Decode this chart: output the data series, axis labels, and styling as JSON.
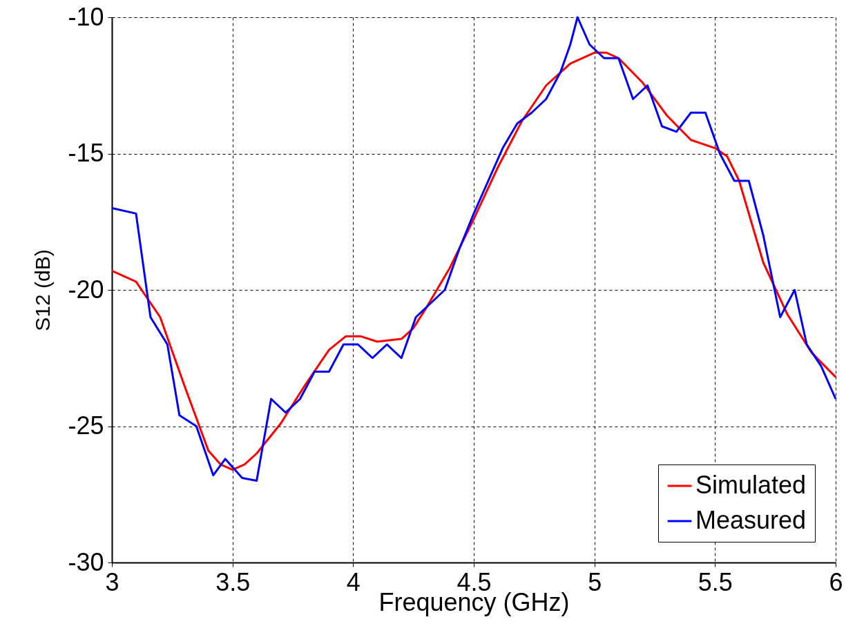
{
  "chart_data": {
    "type": "line",
    "xlabel": "Frequency (GHz)",
    "ylabel": "S12 (dB)",
    "xlim": [
      3,
      6
    ],
    "xticks": [
      3,
      3.5,
      4,
      4.5,
      5,
      5.5,
      6
    ],
    "ylim": [
      -30,
      -10
    ],
    "yticks": [
      -30,
      -25,
      -20,
      -15,
      -10
    ],
    "grid": true,
    "legend": "bottom right",
    "line_style": "solid",
    "marker": "none",
    "series": [
      {
        "name": "Simulated",
        "color": "#ff0000",
        "x": [
          3,
          3.1,
          3.2,
          3.3,
          3.4,
          3.45,
          3.5,
          3.55,
          3.6,
          3.7,
          3.8,
          3.9,
          3.97,
          4.03,
          4.1,
          4.2,
          4.25,
          4.3,
          4.4,
          4.5,
          4.6,
          4.7,
          4.8,
          4.9,
          5.0,
          5.05,
          5.1,
          5.2,
          5.3,
          5.4,
          5.5,
          5.55,
          5.6,
          5.65,
          5.7,
          5.8,
          5.9,
          6.0
        ],
        "values": [
          -19.3,
          -19.7,
          -21.0,
          -23.5,
          -25.9,
          -26.4,
          -26.6,
          -26.4,
          -26.0,
          -24.9,
          -23.5,
          -22.2,
          -21.7,
          -21.7,
          -21.9,
          -21.8,
          -21.4,
          -20.7,
          -19.2,
          -17.4,
          -15.5,
          -13.8,
          -12.5,
          -11.7,
          -11.3,
          -11.3,
          -11.5,
          -12.4,
          -13.6,
          -14.5,
          -14.8,
          -15.1,
          -16.0,
          -17.5,
          -19.0,
          -20.9,
          -22.3,
          -23.2
        ]
      },
      {
        "name": "Measured",
        "color": "#0000ff",
        "x": [
          3.0,
          3.1,
          3.16,
          3.23,
          3.28,
          3.35,
          3.42,
          3.47,
          3.54,
          3.6,
          3.66,
          3.72,
          3.78,
          3.84,
          3.9,
          3.96,
          4.02,
          4.08,
          4.14,
          4.2,
          4.26,
          4.32,
          4.38,
          4.44,
          4.5,
          4.56,
          4.62,
          4.68,
          4.74,
          4.8,
          4.86,
          4.9,
          4.93,
          4.98,
          5.04,
          5.1,
          5.16,
          5.22,
          5.28,
          5.34,
          5.4,
          5.46,
          5.52,
          5.58,
          5.64,
          5.7,
          5.77,
          5.83,
          5.88,
          5.94,
          6.0
        ],
        "values": [
          -17.0,
          -17.2,
          -21.0,
          -22.0,
          -24.6,
          -25.0,
          -26.8,
          -26.2,
          -26.9,
          -27.0,
          -24.0,
          -24.5,
          -24.0,
          -23.0,
          -23.0,
          -22.0,
          -22.0,
          -22.5,
          -22.0,
          -22.5,
          -21.0,
          -20.5,
          -20.0,
          -18.5,
          -17.2,
          -16.0,
          -14.8,
          -13.9,
          -13.5,
          -13.0,
          -12.0,
          -11.0,
          -10.0,
          -11.0,
          -11.5,
          -11.5,
          -13.0,
          -12.5,
          -14.0,
          -14.2,
          -13.5,
          -13.5,
          -15.0,
          -16.0,
          -16.0,
          -18.0,
          -21.0,
          -20.0,
          -22.0,
          -22.8,
          -24.0
        ]
      }
    ]
  }
}
